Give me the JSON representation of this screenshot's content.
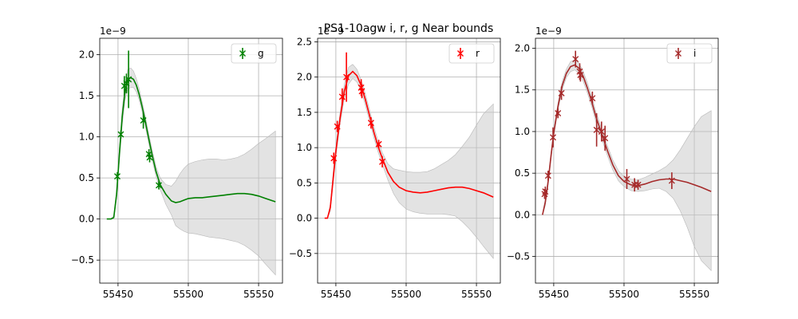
{
  "figure": {
    "title": "PS1-10agw  i, r, g Near bounds"
  },
  "chart_data": [
    {
      "type": "scatter",
      "band": "g",
      "color": "#008000",
      "title": "",
      "xlabel": "",
      "ylabel": "",
      "offset_label": "1e−9",
      "xlim": [
        55437,
        55567
      ],
      "ylim": [
        -0.78,
        2.2
      ],
      "xticks": [
        55450,
        55500,
        55550
      ],
      "yticks": [
        -0.5,
        0.0,
        0.5,
        1.0,
        1.5,
        2.0
      ],
      "ytick_labels": [
        "−0.5",
        "0.0",
        "0.5",
        "1.0",
        "1.5",
        "2.0"
      ],
      "grid": true,
      "legend": "top-right",
      "series": [
        {
          "name": "g",
          "kind": "errorbar",
          "points": [
            {
              "x": 55449.5,
              "y": 0.52,
              "err": 0.05
            },
            {
              "x": 55452.0,
              "y": 1.03,
              "err": 0.05
            },
            {
              "x": 55454.5,
              "y": 1.62,
              "err": 0.12
            },
            {
              "x": 55456.0,
              "y": 1.65,
              "err": 0.12
            },
            {
              "x": 55457.5,
              "y": 1.7,
              "err": 0.35
            },
            {
              "x": 55468.0,
              "y": 1.2,
              "err": 0.1
            },
            {
              "x": 55472.0,
              "y": 0.79,
              "err": 0.06
            },
            {
              "x": 55472.5,
              "y": 0.75,
              "err": 0.06
            },
            {
              "x": 55479.0,
              "y": 0.41,
              "err": 0.05
            }
          ]
        },
        {
          "kind": "model",
          "x": [
            55442,
            55445,
            55447,
            55449,
            55451,
            55453,
            55455,
            55457,
            55459,
            55461,
            55463,
            55465,
            55467,
            55469,
            55471,
            55474,
            55477,
            55480,
            55484,
            55488,
            55491,
            55494,
            55497,
            55500,
            55505,
            55510,
            55515,
            55520,
            55525,
            55530,
            55535,
            55540,
            55545,
            55550,
            55555,
            55562
          ],
          "y": [
            0.0,
            0.0,
            0.02,
            0.3,
            0.8,
            1.25,
            1.55,
            1.7,
            1.72,
            1.7,
            1.63,
            1.52,
            1.38,
            1.22,
            1.05,
            0.8,
            0.58,
            0.42,
            0.3,
            0.22,
            0.2,
            0.21,
            0.23,
            0.25,
            0.26,
            0.26,
            0.27,
            0.28,
            0.29,
            0.3,
            0.31,
            0.31,
            0.3,
            0.28,
            0.25,
            0.21
          ],
          "band_lo": [
            0.0,
            0.0,
            0.0,
            0.25,
            0.72,
            1.15,
            1.45,
            1.58,
            1.6,
            1.6,
            1.55,
            1.45,
            1.32,
            1.16,
            0.99,
            0.74,
            0.52,
            0.36,
            0.18,
            0.05,
            -0.08,
            -0.12,
            -0.15,
            -0.17,
            -0.18,
            -0.2,
            -0.22,
            -0.23,
            -0.24,
            -0.26,
            -0.28,
            -0.32,
            -0.38,
            -0.45,
            -0.55,
            -0.68
          ],
          "band_hi": [
            0.0,
            0.0,
            0.04,
            0.35,
            0.88,
            1.35,
            1.65,
            1.82,
            1.84,
            1.8,
            1.71,
            1.59,
            1.44,
            1.28,
            1.11,
            0.86,
            0.64,
            0.5,
            0.42,
            0.4,
            0.46,
            0.55,
            0.62,
            0.67,
            0.7,
            0.72,
            0.73,
            0.73,
            0.72,
            0.73,
            0.75,
            0.79,
            0.85,
            0.92,
            0.98,
            1.07
          ]
        }
      ]
    },
    {
      "type": "scatter",
      "band": "r",
      "color": "#ff0000",
      "title": "",
      "xlabel": "",
      "ylabel": "",
      "offset_label": "1e−9",
      "xlim": [
        55437,
        55567
      ],
      "ylim": [
        -0.92,
        2.55
      ],
      "xticks": [
        55450,
        55500,
        55550
      ],
      "yticks": [
        -0.5,
        0.0,
        0.5,
        1.0,
        1.5,
        2.0,
        2.5
      ],
      "ytick_labels": [
        "−0.5",
        "0.0",
        "0.5",
        "1.0",
        "1.5",
        "2.0",
        "2.5"
      ],
      "grid": true,
      "legend": "top-right",
      "series": [
        {
          "name": "r",
          "kind": "errorbar",
          "points": [
            {
              "x": 55448.5,
              "y": 0.85,
              "err": 0.08
            },
            {
              "x": 55451.0,
              "y": 1.3,
              "err": 0.08
            },
            {
              "x": 55454.5,
              "y": 1.72,
              "err": 0.12
            },
            {
              "x": 55457.5,
              "y": 2.0,
              "err": 0.35
            },
            {
              "x": 55468.0,
              "y": 1.85,
              "err": 0.12
            },
            {
              "x": 55468.5,
              "y": 1.8,
              "err": 0.1
            },
            {
              "x": 55475.0,
              "y": 1.35,
              "err": 0.08
            },
            {
              "x": 55480.5,
              "y": 1.05,
              "err": 0.06
            },
            {
              "x": 55483.0,
              "y": 0.8,
              "err": 0.08
            }
          ]
        },
        {
          "kind": "model",
          "x": [
            55442,
            55444,
            55446,
            55448,
            55450,
            55453,
            55456,
            55459,
            55462,
            55465,
            55468,
            55471,
            55474,
            55477,
            55480,
            55483,
            55487,
            55491,
            55495,
            55500,
            55505,
            55510,
            55515,
            55520,
            55525,
            55530,
            55535,
            55540,
            55545,
            55550,
            55555,
            55562
          ],
          "y": [
            0.0,
            0.0,
            0.15,
            0.55,
            0.95,
            1.42,
            1.8,
            2.02,
            2.08,
            2.02,
            1.88,
            1.68,
            1.45,
            1.22,
            1.02,
            0.85,
            0.65,
            0.52,
            0.44,
            0.39,
            0.37,
            0.36,
            0.37,
            0.39,
            0.41,
            0.43,
            0.44,
            0.44,
            0.42,
            0.39,
            0.36,
            0.3
          ],
          "band_lo": [
            0.0,
            0.0,
            0.1,
            0.47,
            0.87,
            1.34,
            1.7,
            1.9,
            1.98,
            1.93,
            1.8,
            1.6,
            1.37,
            1.14,
            0.94,
            0.77,
            0.54,
            0.35,
            0.22,
            0.13,
            0.09,
            0.07,
            0.06,
            0.06,
            0.06,
            0.05,
            0.03,
            -0.05,
            -0.15,
            -0.27,
            -0.4,
            -0.57
          ],
          "band_hi": [
            0.0,
            0.0,
            0.2,
            0.63,
            1.03,
            1.5,
            1.9,
            2.14,
            2.18,
            2.11,
            1.96,
            1.76,
            1.53,
            1.3,
            1.1,
            0.93,
            0.77,
            0.7,
            0.68,
            0.66,
            0.65,
            0.65,
            0.66,
            0.7,
            0.76,
            0.82,
            0.9,
            1.02,
            1.15,
            1.32,
            1.48,
            1.62
          ]
        }
      ]
    },
    {
      "type": "scatter",
      "band": "i",
      "color": "#a52a2a",
      "title": "",
      "xlabel": "",
      "ylabel": "",
      "offset_label": "1e−9",
      "xlim": [
        55437,
        55567
      ],
      "ylim": [
        -0.82,
        2.12
      ],
      "xticks": [
        55450,
        55500,
        55550
      ],
      "yticks": [
        -0.5,
        0.0,
        0.5,
        1.0,
        1.5,
        2.0
      ],
      "ytick_labels": [
        "−0.5",
        "0.0",
        "0.5",
        "1.0",
        "1.5",
        "2.0"
      ],
      "grid": true,
      "legend": "top-right",
      "series": [
        {
          "name": "i",
          "kind": "errorbar",
          "points": [
            {
              "x": 55443.5,
              "y": 0.25,
              "err": 0.06
            },
            {
              "x": 55444.0,
              "y": 0.28,
              "err": 0.06
            },
            {
              "x": 55446.0,
              "y": 0.47,
              "err": 0.06
            },
            {
              "x": 55449.5,
              "y": 0.93,
              "err": 0.12
            },
            {
              "x": 55453.0,
              "y": 1.22,
              "err": 0.06
            },
            {
              "x": 55455.5,
              "y": 1.46,
              "err": 0.08
            },
            {
              "x": 55465.5,
              "y": 1.87,
              "err": 0.1
            },
            {
              "x": 55468.5,
              "y": 1.72,
              "err": 0.1
            },
            {
              "x": 55469.0,
              "y": 1.68,
              "err": 0.08
            },
            {
              "x": 55477.5,
              "y": 1.4,
              "err": 0.08
            },
            {
              "x": 55480.5,
              "y": 1.02,
              "err": 0.2
            },
            {
              "x": 55484.0,
              "y": 1.0,
              "err": 0.12
            },
            {
              "x": 55486.5,
              "y": 0.92,
              "err": 0.15
            },
            {
              "x": 55502.0,
              "y": 0.43,
              "err": 0.12
            },
            {
              "x": 55507.5,
              "y": 0.36,
              "err": 0.08
            },
            {
              "x": 55510.0,
              "y": 0.36,
              "err": 0.06
            },
            {
              "x": 55534.0,
              "y": 0.41,
              "err": 0.1
            }
          ]
        },
        {
          "kind": "model",
          "x": [
            55442,
            55444,
            55446,
            55448,
            55450,
            55453,
            55456,
            55459,
            55462,
            55465,
            55468,
            55471,
            55474,
            55477,
            55480,
            55484,
            55488,
            55492,
            55496,
            55500,
            55505,
            55510,
            55515,
            55520,
            55525,
            55530,
            55535,
            55540,
            55545,
            55550,
            55555,
            55562
          ],
          "y": [
            0.0,
            0.15,
            0.4,
            0.7,
            0.98,
            1.3,
            1.55,
            1.7,
            1.78,
            1.8,
            1.76,
            1.66,
            1.52,
            1.36,
            1.18,
            0.98,
            0.78,
            0.6,
            0.47,
            0.4,
            0.36,
            0.35,
            0.37,
            0.4,
            0.42,
            0.43,
            0.43,
            0.41,
            0.39,
            0.36,
            0.33,
            0.28
          ],
          "band_lo": [
            0.0,
            0.11,
            0.36,
            0.66,
            0.94,
            1.26,
            1.5,
            1.65,
            1.72,
            1.74,
            1.7,
            1.6,
            1.46,
            1.3,
            1.12,
            0.92,
            0.72,
            0.54,
            0.41,
            0.34,
            0.29,
            0.28,
            0.29,
            0.31,
            0.32,
            0.28,
            0.2,
            0.05,
            -0.15,
            -0.38,
            -0.55,
            -0.67
          ],
          "band_hi": [
            0.0,
            0.19,
            0.44,
            0.74,
            1.02,
            1.34,
            1.6,
            1.75,
            1.84,
            1.86,
            1.82,
            1.72,
            1.58,
            1.42,
            1.24,
            1.04,
            0.84,
            0.66,
            0.53,
            0.46,
            0.43,
            0.42,
            0.45,
            0.49,
            0.53,
            0.58,
            0.66,
            0.78,
            0.92,
            1.06,
            1.18,
            1.25
          ]
        }
      ]
    }
  ]
}
